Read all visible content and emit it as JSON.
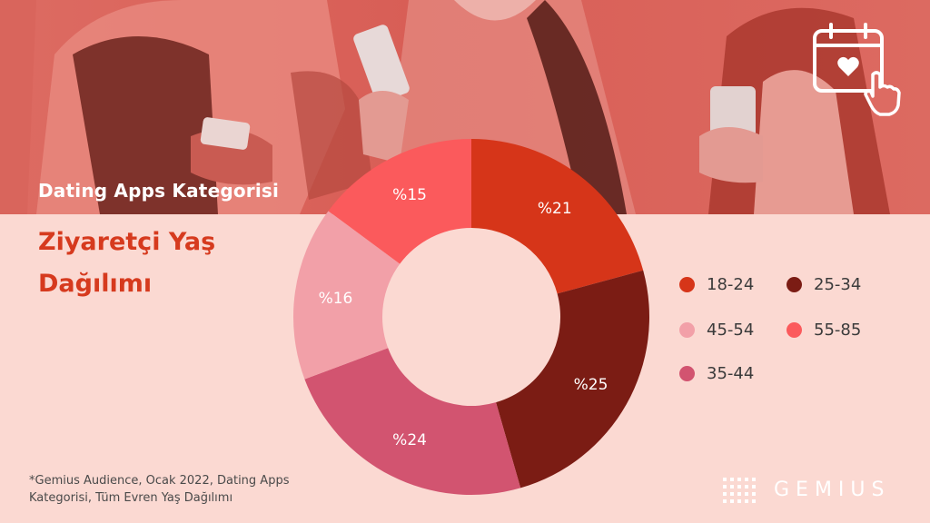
{
  "header": {
    "subtitle": "Dating Apps Kategorisi",
    "title": "Ziyaretçi Yaş Dağılımı"
  },
  "chart_data": {
    "type": "pie",
    "variant": "donut",
    "title": "Ziyaretçi Yaş Dağılımı",
    "slices": [
      {
        "label": "18-24",
        "value": 21,
        "text": "%21",
        "color": "#d63519"
      },
      {
        "label": "25-34",
        "value": 25,
        "text": "%25",
        "color": "#7b1c14"
      },
      {
        "label": "35-44",
        "value": 24,
        "text": "%24",
        "color": "#d25470"
      },
      {
        "label": "45-54",
        "value": 16,
        "text": "%16",
        "color": "#f2a0a8"
      },
      {
        "label": "55-85",
        "value": 15,
        "text": "%15",
        "color": "#fb5a5c"
      }
    ],
    "legend": {
      "placement": "right",
      "items": [
        {
          "label": "18-24",
          "color": "#d63519"
        },
        {
          "label": "25-34",
          "color": "#7b1c14"
        },
        {
          "label": "45-54",
          "color": "#f2a0a8"
        },
        {
          "label": "55-85",
          "color": "#fb5a5c"
        },
        {
          "label": "35-44",
          "color": "#d25470"
        }
      ]
    }
  },
  "footnote": "*Gemius Audience, Ocak 2022, Dating Apps Kategorisi, Tüm Evren Yaş Dağılımı",
  "brand": {
    "name": "GEMIUS",
    "icon": "calendar-heart-tap-icon"
  }
}
